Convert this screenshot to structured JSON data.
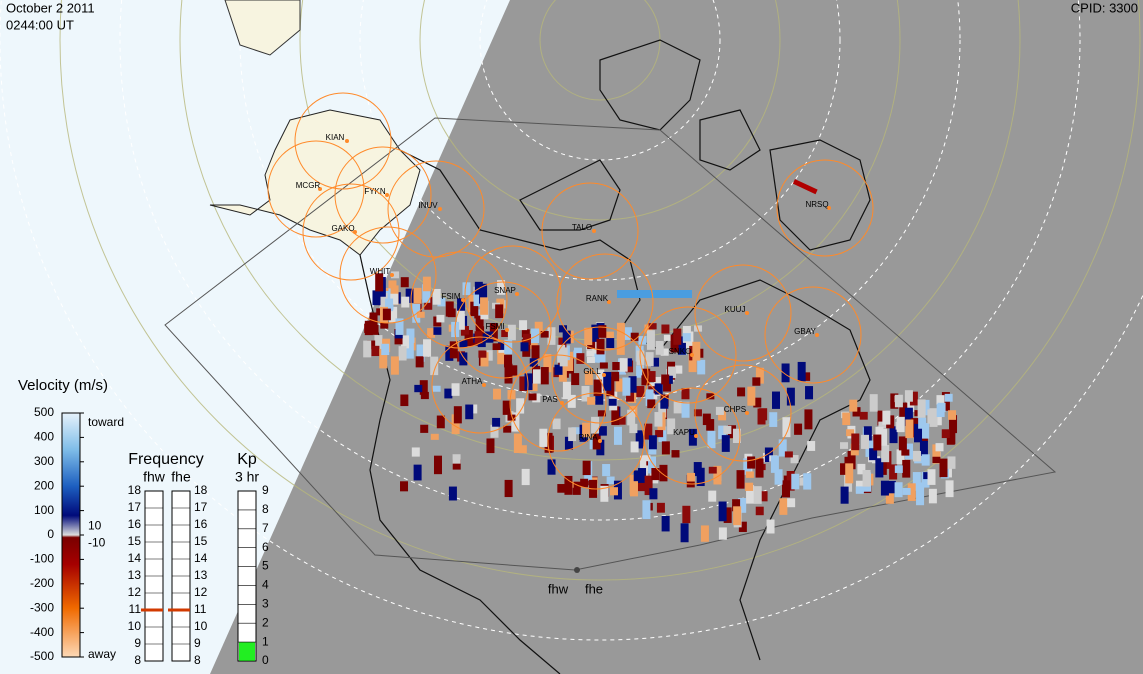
{
  "header": {
    "date": "October 2 2011",
    "time": "0244:00 UT",
    "cpid": "CPID: 3300"
  },
  "velocity": {
    "title": "Velocity (m/s)",
    "lim": [
      -500,
      500
    ],
    "ticks": [
      500,
      400,
      300,
      200,
      100,
      0,
      -100,
      -200,
      -300,
      -400,
      -500
    ],
    "toward": "toward",
    "away": "away",
    "ground_scatter": [
      10,
      -10
    ]
  },
  "frequency": {
    "title": "Frequency",
    "lim": [
      8,
      18
    ],
    "ticks": [
      18,
      17,
      16,
      15,
      14,
      13,
      12,
      11,
      10,
      9,
      8
    ],
    "radars": [
      {
        "name": "fhw",
        "value": 11
      },
      {
        "name": "fhe",
        "value": 11
      }
    ]
  },
  "kp": {
    "title": "Kp",
    "period": "3 hr",
    "lim": [
      0,
      9
    ],
    "ticks": [
      9,
      8,
      7,
      6,
      5,
      4,
      3,
      2,
      1,
      0
    ],
    "value": 1
  },
  "stations": [
    "KIAN",
    "MCGR",
    "FYKN",
    "INUV",
    "GAKO",
    "WHIT",
    "FSIM",
    "SNAP",
    "RANK",
    "FSMI",
    "TALO",
    "NRSQ",
    "KUUJ",
    "GBAY",
    "SNKO",
    "GILL",
    "ATHA",
    "PAS",
    "RINA",
    "KAPU",
    "CHPS"
  ]
}
